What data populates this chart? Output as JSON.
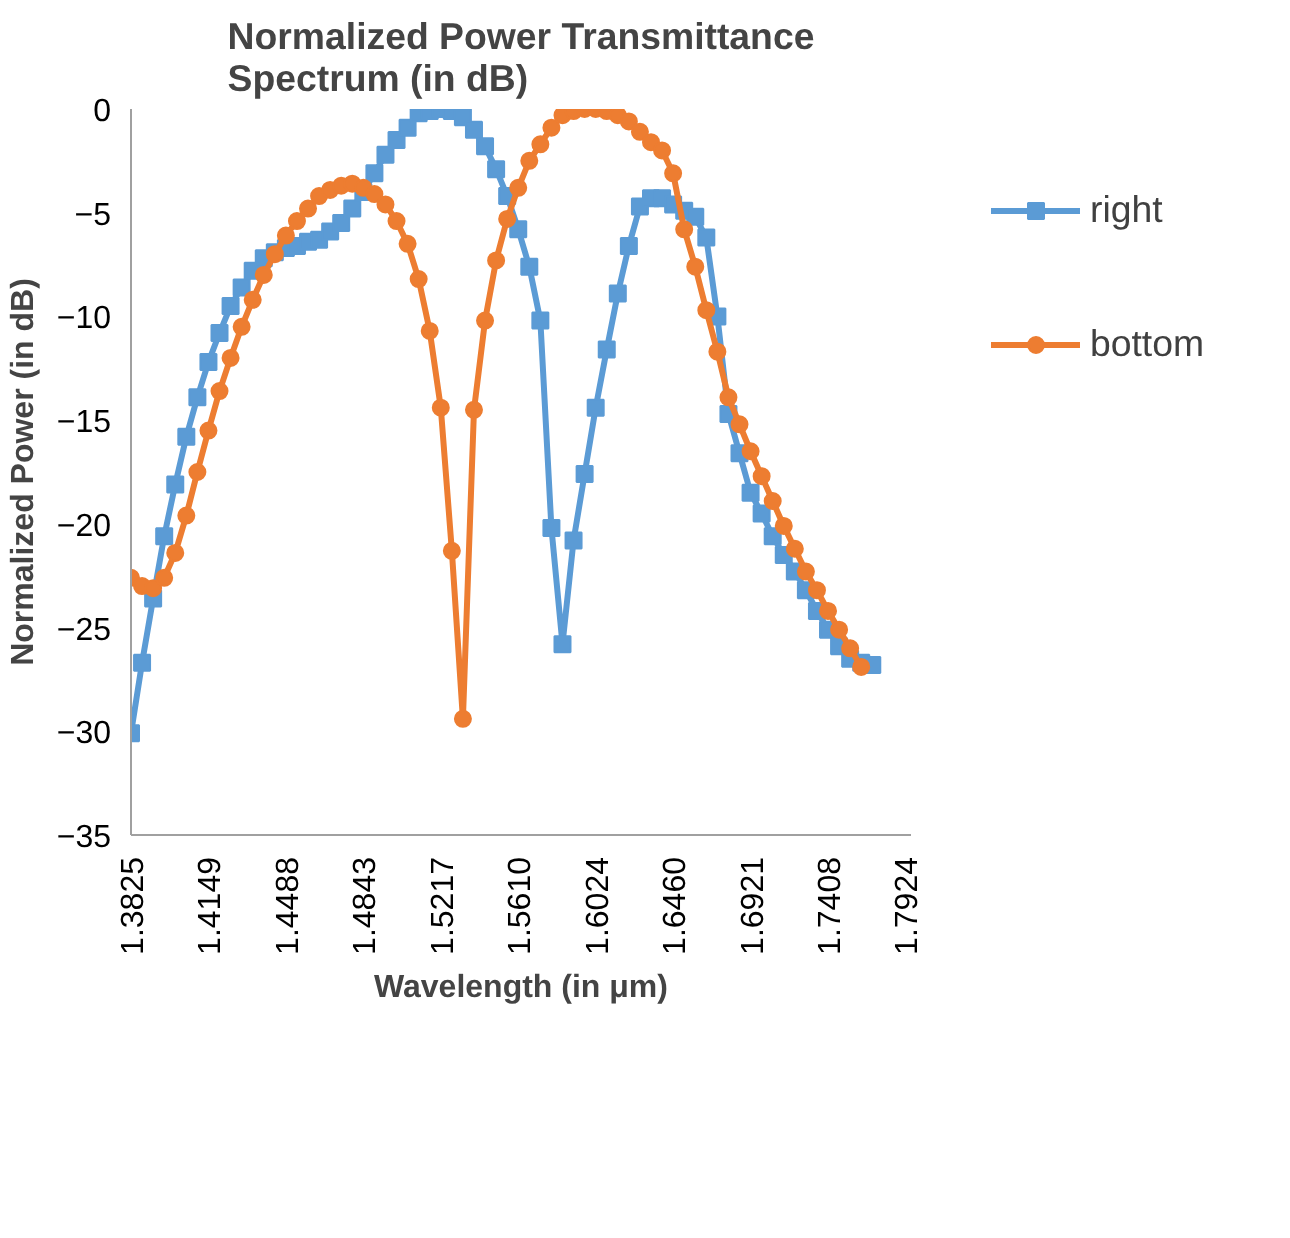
{
  "chart_data": {
    "type": "line",
    "title": "Normalized Power Transmittance Spectrum (in dB)",
    "xlabel": "Wavelength (in μm)",
    "ylabel": "Normalized Power (in dB)",
    "categories": [
      "1.3825",
      null,
      null,
      null,
      null,
      null,
      null,
      "1.4149",
      null,
      null,
      null,
      null,
      null,
      null,
      "1.4488",
      null,
      null,
      null,
      null,
      null,
      null,
      "1.4843",
      null,
      null,
      null,
      null,
      null,
      null,
      "1.5217",
      null,
      null,
      null,
      null,
      null,
      null,
      "1.5610",
      null,
      null,
      null,
      null,
      null,
      null,
      "1.6024",
      null,
      null,
      null,
      null,
      null,
      null,
      "1.6460",
      null,
      null,
      null,
      null,
      null,
      null,
      "1.6921",
      null,
      null,
      null,
      null,
      null,
      null,
      "1.7408",
      null,
      null,
      null,
      null,
      null,
      null,
      "1.7924"
    ],
    "series": [
      {
        "name": "right",
        "color": "#5b9bd5",
        "marker": "square",
        "values": [
          -30.1,
          -26.7,
          -23.6,
          -20.6,
          -18.1,
          -15.8,
          -13.9,
          -12.2,
          -10.8,
          -9.5,
          -8.6,
          -7.8,
          -7.2,
          -6.9,
          -6.7,
          -6.6,
          -6.4,
          -6.3,
          -5.9,
          -5.5,
          -4.8,
          -4.0,
          -3.1,
          -2.2,
          -1.5,
          -0.9,
          -0.2,
          -0.1,
          0.0,
          -0.1,
          -0.4,
          -1.0,
          -1.8,
          -2.9,
          -4.2,
          -5.8,
          -7.6,
          -10.2,
          -20.2,
          -25.8,
          -20.8,
          -17.6,
          -14.4,
          -11.6,
          -8.9,
          -6.6,
          -4.7,
          -4.3,
          -4.3,
          -4.6,
          -4.9,
          -5.2,
          -6.2,
          -10.0,
          -14.7,
          -16.6,
          -18.5,
          -19.5,
          -20.6,
          -21.5,
          -22.3,
          -23.2,
          -24.2,
          -25.1,
          -25.9,
          -26.5,
          -26.7,
          -26.8,
          null,
          null,
          null
        ]
      },
      {
        "name": "bottom",
        "color": "#ed7d31",
        "marker": "circle",
        "values": [
          -22.6,
          -23.0,
          -23.1,
          -22.6,
          -21.4,
          -19.6,
          -17.5,
          -15.5,
          -13.6,
          -12.0,
          -10.5,
          -9.2,
          -8.0,
          -7.0,
          -6.1,
          -5.4,
          -4.8,
          -4.2,
          -3.9,
          -3.7,
          -3.6,
          -3.8,
          -4.1,
          -4.6,
          -5.4,
          -6.5,
          -8.2,
          -10.7,
          -14.4,
          -21.3,
          -29.4,
          -14.5,
          -10.2,
          -7.3,
          -5.3,
          -3.8,
          -2.5,
          -1.7,
          -0.9,
          -0.3,
          -0.1,
          0.0,
          0.0,
          -0.1,
          -0.3,
          -0.6,
          -1.1,
          -1.6,
          -2.0,
          -3.1,
          -5.8,
          -7.6,
          -9.7,
          -11.7,
          -13.9,
          -15.2,
          -16.5,
          -17.7,
          -18.9,
          -20.1,
          -21.2,
          -22.3,
          -23.2,
          -24.2,
          -25.1,
          -26.0,
          -26.9,
          null,
          null,
          null,
          null
        ]
      }
    ],
    "ylim": [
      -35,
      0
    ],
    "yticks": [
      -35,
      -30,
      -25,
      -20,
      -15,
      -10,
      -5,
      0
    ],
    "grid": false,
    "legend": "right"
  }
}
